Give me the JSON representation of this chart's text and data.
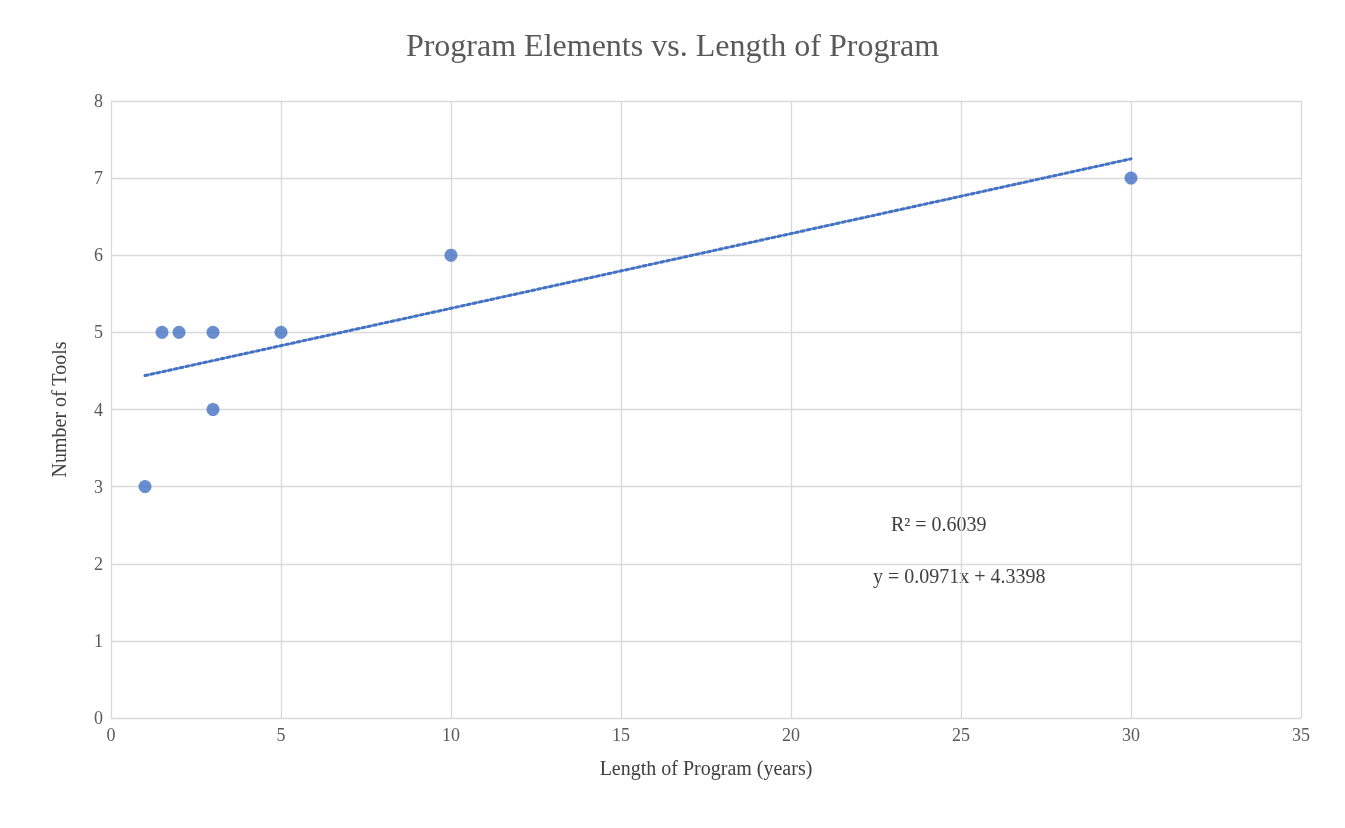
{
  "chart_data": {
    "type": "scatter",
    "title": "Program Elements vs. Length of Program",
    "xlabel": "Length of Program (years)",
    "ylabel": "Number of Tools",
    "series": [
      {
        "color": "#4472c4",
        "marker": "circle",
        "x": [
          1,
          1.5,
          2,
          3,
          3,
          5,
          10,
          30
        ],
        "values": [
          3,
          5,
          5,
          5,
          4,
          5,
          6,
          7
        ]
      },
      {
        "type": "line",
        "color": "#4472c4",
        "marker": "none",
        "line_style": "dotted",
        "x": [
          1,
          30
        ],
        "values": [
          4.44,
          7.25
        ]
      }
    ],
    "xlim": [
      0,
      35
    ],
    "xticks": [
      0,
      5,
      10,
      15,
      20,
      25,
      30,
      35
    ],
    "ylim": [
      0,
      8
    ],
    "yticks": [
      0,
      1,
      2,
      3,
      4,
      5,
      6,
      7,
      8
    ],
    "grid": true,
    "annotations": [
      "R² = 0.6039",
      "y = 0.0971x + 4.3398"
    ]
  }
}
